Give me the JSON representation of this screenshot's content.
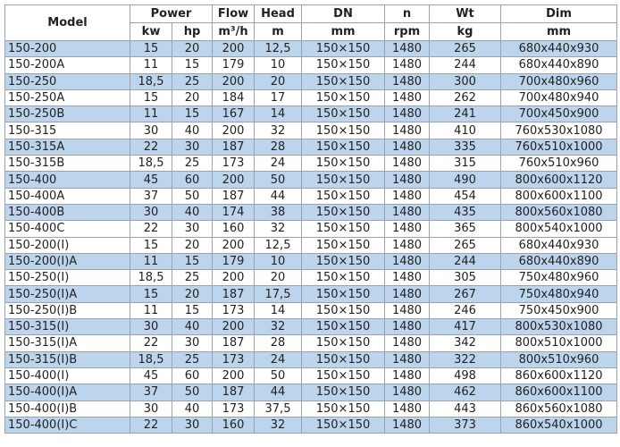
{
  "header": {
    "model": "Model",
    "groups": [
      "Power",
      "Flow",
      "Head",
      "DN",
      "n",
      "Wt",
      "Dim"
    ],
    "units": [
      "kw",
      "hp",
      "m³/h",
      "m",
      "mm",
      "rpm",
      "kg",
      "mm"
    ]
  },
  "colors": {
    "shaded_row": "#bcd4ec",
    "border": "#9aa3ad"
  },
  "rows": [
    {
      "shaded": true,
      "cells": [
        "150-200",
        "15",
        "20",
        "200",
        "12,5",
        "150×150",
        "1480",
        "265",
        "680x440x930"
      ]
    },
    {
      "shaded": false,
      "cells": [
        "150-200A",
        "11",
        "15",
        "179",
        "10",
        "150×150",
        "1480",
        "244",
        "680x440x890"
      ]
    },
    {
      "shaded": true,
      "cells": [
        "150-250",
        "18,5",
        "25",
        "200",
        "20",
        "150×150",
        "1480",
        "300",
        "700x480x960"
      ]
    },
    {
      "shaded": false,
      "cells": [
        "150-250A",
        "15",
        "20",
        "184",
        "17",
        "150×150",
        "1480",
        "262",
        "700x480x940"
      ]
    },
    {
      "shaded": true,
      "cells": [
        "150-250B",
        "11",
        "15",
        "167",
        "14",
        "150×150",
        "1480",
        "241",
        "700x450x900"
      ]
    },
    {
      "shaded": false,
      "cells": [
        "150-315",
        "30",
        "40",
        "200",
        "32",
        "150×150",
        "1480",
        "410",
        "760x530x1080"
      ]
    },
    {
      "shaded": true,
      "cells": [
        "150-315A",
        "22",
        "30",
        "187",
        "28",
        "150×150",
        "1480",
        "335",
        "760x510x1000"
      ]
    },
    {
      "shaded": false,
      "cells": [
        "150-315B",
        "18,5",
        "25",
        "173",
        "24",
        "150×150",
        "1480",
        "315",
        "760x510x960"
      ]
    },
    {
      "shaded": true,
      "cells": [
        "150-400",
        "45",
        "60",
        "200",
        "50",
        "150×150",
        "1480",
        "490",
        "800x600x1120"
      ]
    },
    {
      "shaded": false,
      "cells": [
        "150-400A",
        "37",
        "50",
        "187",
        "44",
        "150×150",
        "1480",
        "454",
        "800x600x1100"
      ]
    },
    {
      "shaded": true,
      "cells": [
        "150-400B",
        "30",
        "40",
        "174",
        "38",
        "150×150",
        "1480",
        "435",
        "800x560x1080"
      ]
    },
    {
      "shaded": false,
      "cells": [
        "150-400C",
        "22",
        "30",
        "160",
        "32",
        "150×150",
        "1480",
        "365",
        "800x540x1000"
      ]
    },
    {
      "shaded": false,
      "cells": [
        "150-200(I)",
        "15",
        "20",
        "200",
        "12,5",
        "150×150",
        "1480",
        "265",
        "680x440x930"
      ]
    },
    {
      "shaded": true,
      "cells": [
        "150-200(I)A",
        "11",
        "15",
        "179",
        "10",
        "150×150",
        "1480",
        "244",
        "680x440x890"
      ]
    },
    {
      "shaded": false,
      "cells": [
        "150-250(I)",
        "18,5",
        "25",
        "200",
        "20",
        "150×150",
        "1480",
        "305",
        "750x480x960"
      ]
    },
    {
      "shaded": true,
      "cells": [
        "150-250(I)A",
        "15",
        "20",
        "187",
        "17,5",
        "150×150",
        "1480",
        "267",
        "750x480x940"
      ]
    },
    {
      "shaded": false,
      "cells": [
        "150-250(I)B",
        "11",
        "15",
        "173",
        "14",
        "150×150",
        "1480",
        "246",
        "750x450x900"
      ]
    },
    {
      "shaded": true,
      "cells": [
        "150-315(I)",
        "30",
        "40",
        "200",
        "32",
        "150×150",
        "1480",
        "417",
        "800x530x1080"
      ]
    },
    {
      "shaded": false,
      "cells": [
        "150-315(I)A",
        "22",
        "30",
        "187",
        "28",
        "150×150",
        "1480",
        "342",
        "800x510x1000"
      ]
    },
    {
      "shaded": true,
      "cells": [
        "150-315(I)B",
        "18,5",
        "25",
        "173",
        "24",
        "150×150",
        "1480",
        "322",
        "800x510x960"
      ]
    },
    {
      "shaded": false,
      "cells": [
        "150-400(I)",
        "45",
        "60",
        "200",
        "50",
        "150×150",
        "1480",
        "498",
        "860x600x1120"
      ]
    },
    {
      "shaded": true,
      "cells": [
        "150-400(I)A",
        "37",
        "50",
        "187",
        "44",
        "150×150",
        "1480",
        "462",
        "860x600x1100"
      ]
    },
    {
      "shaded": false,
      "cells": [
        "150-400(I)B",
        "30",
        "40",
        "173",
        "37,5",
        "150×150",
        "1480",
        "443",
        "860x560x1080"
      ]
    },
    {
      "shaded": true,
      "cells": [
        "150-400(I)C",
        "22",
        "30",
        "160",
        "32",
        "150×150",
        "1480",
        "373",
        "860x540x1000"
      ]
    }
  ]
}
